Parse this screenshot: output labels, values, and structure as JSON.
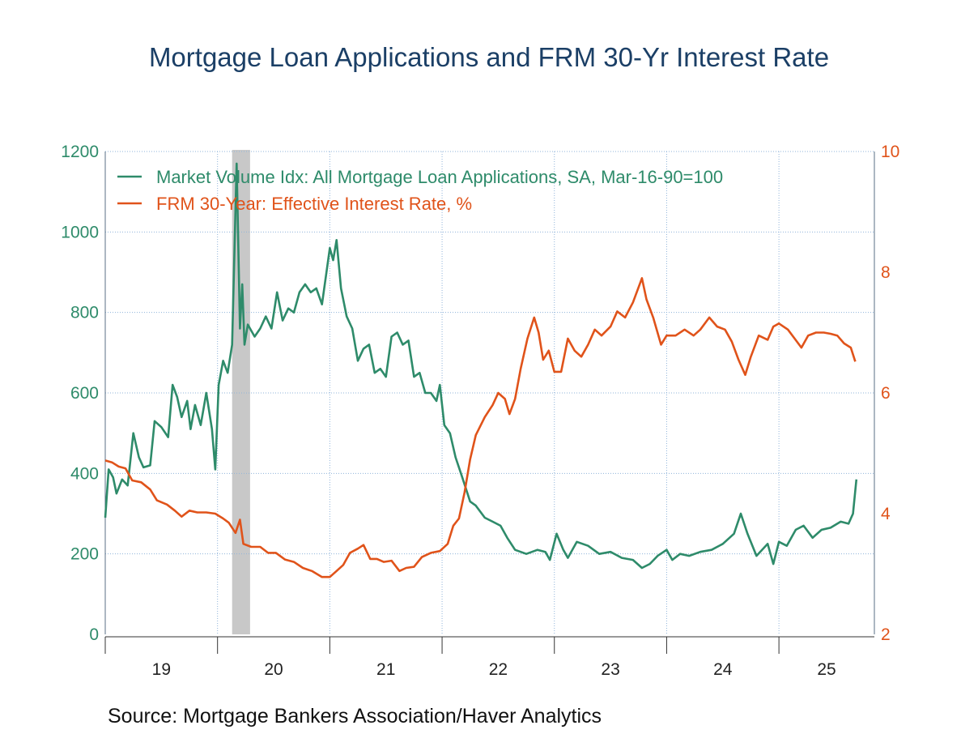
{
  "chart_data": {
    "type": "line",
    "title": "Mortgage Loan Applications and FRM 30-Yr Interest Rate",
    "source": "Source:  Mortgage Bankers Association/Haver Analytics",
    "x_range": [
      2019.0,
      2025.85
    ],
    "x_ticks": [
      "19",
      "20",
      "21",
      "22",
      "23",
      "24",
      "25"
    ],
    "y_left": {
      "range": [
        0,
        1200
      ],
      "ticks": [
        "0",
        "200",
        "400",
        "600",
        "800",
        "1000",
        "1200"
      ]
    },
    "y_right": {
      "range": [
        2,
        10
      ],
      "ticks": [
        "2",
        "4",
        "6",
        "8",
        "10"
      ]
    },
    "grid": true,
    "legend_position": "top-left",
    "recession_shading": [
      2020.13,
      2020.29
    ],
    "series": [
      {
        "name": "Market Volume Idx: All Mortgage Loan Applications, SA, Mar-16-90=100",
        "axis": "left",
        "color": "#2e8b6a",
        "points": [
          [
            2019.0,
            290
          ],
          [
            2019.03,
            410
          ],
          [
            2019.07,
            390
          ],
          [
            2019.1,
            350
          ],
          [
            2019.15,
            385
          ],
          [
            2019.2,
            370
          ],
          [
            2019.25,
            500
          ],
          [
            2019.3,
            440
          ],
          [
            2019.34,
            415
          ],
          [
            2019.4,
            420
          ],
          [
            2019.44,
            530
          ],
          [
            2019.5,
            515
          ],
          [
            2019.56,
            490
          ],
          [
            2019.6,
            620
          ],
          [
            2019.64,
            590
          ],
          [
            2019.68,
            540
          ],
          [
            2019.73,
            580
          ],
          [
            2019.76,
            510
          ],
          [
            2019.8,
            570
          ],
          [
            2019.85,
            520
          ],
          [
            2019.9,
            600
          ],
          [
            2019.95,
            510
          ],
          [
            2019.98,
            410
          ],
          [
            2020.01,
            620
          ],
          [
            2020.05,
            680
          ],
          [
            2020.09,
            650
          ],
          [
            2020.13,
            720
          ],
          [
            2020.17,
            1170
          ],
          [
            2020.2,
            760
          ],
          [
            2020.22,
            870
          ],
          [
            2020.24,
            720
          ],
          [
            2020.27,
            770
          ],
          [
            2020.33,
            740
          ],
          [
            2020.38,
            760
          ],
          [
            2020.43,
            790
          ],
          [
            2020.48,
            760
          ],
          [
            2020.53,
            850
          ],
          [
            2020.58,
            780
          ],
          [
            2020.63,
            810
          ],
          [
            2020.68,
            800
          ],
          [
            2020.73,
            850
          ],
          [
            2020.78,
            870
          ],
          [
            2020.83,
            850
          ],
          [
            2020.88,
            860
          ],
          [
            2020.93,
            820
          ],
          [
            2021.0,
            960
          ],
          [
            2021.03,
            930
          ],
          [
            2021.06,
            980
          ],
          [
            2021.1,
            860
          ],
          [
            2021.15,
            790
          ],
          [
            2021.2,
            760
          ],
          [
            2021.25,
            680
          ],
          [
            2021.3,
            710
          ],
          [
            2021.35,
            720
          ],
          [
            2021.4,
            650
          ],
          [
            2021.45,
            660
          ],
          [
            2021.5,
            640
          ],
          [
            2021.55,
            740
          ],
          [
            2021.6,
            750
          ],
          [
            2021.65,
            720
          ],
          [
            2021.7,
            730
          ],
          [
            2021.75,
            640
          ],
          [
            2021.8,
            650
          ],
          [
            2021.85,
            600
          ],
          [
            2021.9,
            600
          ],
          [
            2021.95,
            580
          ],
          [
            2021.98,
            620
          ],
          [
            2022.02,
            520
          ],
          [
            2022.07,
            500
          ],
          [
            2022.12,
            440
          ],
          [
            2022.18,
            390
          ],
          [
            2022.25,
            330
          ],
          [
            2022.3,
            320
          ],
          [
            2022.38,
            290
          ],
          [
            2022.45,
            280
          ],
          [
            2022.52,
            270
          ],
          [
            2022.58,
            240
          ],
          [
            2022.65,
            210
          ],
          [
            2022.75,
            200
          ],
          [
            2022.85,
            210
          ],
          [
            2022.92,
            205
          ],
          [
            2022.96,
            185
          ],
          [
            2023.02,
            250
          ],
          [
            2023.08,
            210
          ],
          [
            2023.12,
            190
          ],
          [
            2023.2,
            230
          ],
          [
            2023.3,
            220
          ],
          [
            2023.4,
            200
          ],
          [
            2023.5,
            205
          ],
          [
            2023.6,
            190
          ],
          [
            2023.7,
            185
          ],
          [
            2023.78,
            165
          ],
          [
            2023.85,
            175
          ],
          [
            2023.92,
            195
          ],
          [
            2024.0,
            210
          ],
          [
            2024.05,
            185
          ],
          [
            2024.12,
            200
          ],
          [
            2024.2,
            195
          ],
          [
            2024.3,
            205
          ],
          [
            2024.4,
            210
          ],
          [
            2024.5,
            225
          ],
          [
            2024.6,
            250
          ],
          [
            2024.66,
            300
          ],
          [
            2024.72,
            250
          ],
          [
            2024.8,
            195
          ],
          [
            2024.9,
            225
          ],
          [
            2024.95,
            175
          ],
          [
            2025.0,
            230
          ],
          [
            2025.07,
            220
          ],
          [
            2025.15,
            260
          ],
          [
            2025.22,
            270
          ],
          [
            2025.3,
            240
          ],
          [
            2025.38,
            260
          ],
          [
            2025.46,
            265
          ],
          [
            2025.55,
            280
          ],
          [
            2025.62,
            275
          ],
          [
            2025.66,
            300
          ],
          [
            2025.69,
            385
          ]
        ]
      },
      {
        "name": "FRM 30-Year: Effective Interest Rate, %",
        "axis": "right",
        "color": "#e0531a",
        "points": [
          [
            2019.0,
            4.88
          ],
          [
            2019.06,
            4.85
          ],
          [
            2019.12,
            4.78
          ],
          [
            2019.18,
            4.75
          ],
          [
            2019.24,
            4.55
          ],
          [
            2019.32,
            4.52
          ],
          [
            2019.4,
            4.4
          ],
          [
            2019.46,
            4.22
          ],
          [
            2019.55,
            4.15
          ],
          [
            2019.62,
            4.05
          ],
          [
            2019.68,
            3.95
          ],
          [
            2019.75,
            4.05
          ],
          [
            2019.82,
            4.02
          ],
          [
            2019.9,
            4.02
          ],
          [
            2019.98,
            4.0
          ],
          [
            2020.05,
            3.92
          ],
          [
            2020.1,
            3.85
          ],
          [
            2020.16,
            3.68
          ],
          [
            2020.2,
            3.9
          ],
          [
            2020.23,
            3.5
          ],
          [
            2020.3,
            3.45
          ],
          [
            2020.38,
            3.45
          ],
          [
            2020.45,
            3.35
          ],
          [
            2020.52,
            3.35
          ],
          [
            2020.6,
            3.24
          ],
          [
            2020.68,
            3.2
          ],
          [
            2020.76,
            3.1
          ],
          [
            2020.84,
            3.05
          ],
          [
            2020.93,
            2.95
          ],
          [
            2021.0,
            2.95
          ],
          [
            2021.06,
            3.05
          ],
          [
            2021.12,
            3.15
          ],
          [
            2021.18,
            3.35
          ],
          [
            2021.25,
            3.42
          ],
          [
            2021.3,
            3.48
          ],
          [
            2021.36,
            3.25
          ],
          [
            2021.42,
            3.25
          ],
          [
            2021.48,
            3.2
          ],
          [
            2021.55,
            3.22
          ],
          [
            2021.62,
            3.05
          ],
          [
            2021.68,
            3.1
          ],
          [
            2021.75,
            3.12
          ],
          [
            2021.82,
            3.28
          ],
          [
            2021.9,
            3.35
          ],
          [
            2021.98,
            3.38
          ],
          [
            2022.05,
            3.5
          ],
          [
            2022.1,
            3.8
          ],
          [
            2022.15,
            3.92
          ],
          [
            2022.2,
            4.35
          ],
          [
            2022.25,
            4.9
          ],
          [
            2022.3,
            5.3
          ],
          [
            2022.38,
            5.6
          ],
          [
            2022.45,
            5.8
          ],
          [
            2022.5,
            6.0
          ],
          [
            2022.56,
            5.9
          ],
          [
            2022.6,
            5.65
          ],
          [
            2022.65,
            5.9
          ],
          [
            2022.7,
            6.4
          ],
          [
            2022.76,
            6.9
          ],
          [
            2022.82,
            7.25
          ],
          [
            2022.86,
            7.0
          ],
          [
            2022.9,
            6.55
          ],
          [
            2022.95,
            6.7
          ],
          [
            2023.0,
            6.35
          ],
          [
            2023.06,
            6.35
          ],
          [
            2023.12,
            6.9
          ],
          [
            2023.18,
            6.7
          ],
          [
            2023.24,
            6.6
          ],
          [
            2023.3,
            6.8
          ],
          [
            2023.36,
            7.05
          ],
          [
            2023.42,
            6.95
          ],
          [
            2023.5,
            7.1
          ],
          [
            2023.56,
            7.35
          ],
          [
            2023.63,
            7.25
          ],
          [
            2023.7,
            7.5
          ],
          [
            2023.78,
            7.9
          ],
          [
            2023.82,
            7.55
          ],
          [
            2023.88,
            7.25
          ],
          [
            2023.95,
            6.8
          ],
          [
            2024.0,
            6.95
          ],
          [
            2024.08,
            6.95
          ],
          [
            2024.16,
            7.05
          ],
          [
            2024.24,
            6.95
          ],
          [
            2024.3,
            7.05
          ],
          [
            2024.38,
            7.25
          ],
          [
            2024.45,
            7.1
          ],
          [
            2024.52,
            7.05
          ],
          [
            2024.58,
            6.85
          ],
          [
            2024.64,
            6.55
          ],
          [
            2024.7,
            6.3
          ],
          [
            2024.75,
            6.6
          ],
          [
            2024.82,
            6.95
          ],
          [
            2024.9,
            6.88
          ],
          [
            2024.95,
            7.1
          ],
          [
            2025.0,
            7.15
          ],
          [
            2025.08,
            7.05
          ],
          [
            2025.14,
            6.9
          ],
          [
            2025.2,
            6.75
          ],
          [
            2025.26,
            6.95
          ],
          [
            2025.33,
            7.0
          ],
          [
            2025.4,
            7.0
          ],
          [
            2025.46,
            6.98
          ],
          [
            2025.52,
            6.95
          ],
          [
            2025.58,
            6.82
          ],
          [
            2025.64,
            6.75
          ],
          [
            2025.68,
            6.52
          ]
        ]
      }
    ]
  }
}
